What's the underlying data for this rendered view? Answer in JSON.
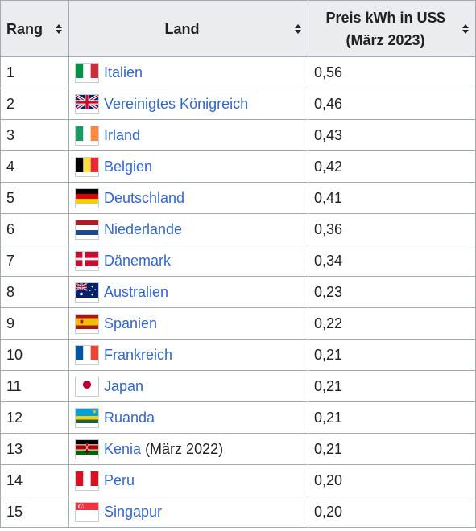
{
  "table": {
    "headers": {
      "rang": "Rang",
      "land": "Land",
      "preis_line1": "Preis kWh in US$",
      "preis_line2": "(März 2023)"
    },
    "rows": [
      {
        "rank": "1",
        "country": "Italien",
        "note": "",
        "price": "0,56",
        "flag_icon": "italy-flag-icon"
      },
      {
        "rank": "2",
        "country": "Vereinigtes Königreich",
        "note": "",
        "price": "0,46",
        "flag_icon": "uk-flag-icon"
      },
      {
        "rank": "3",
        "country": "Irland",
        "note": "",
        "price": "0,43",
        "flag_icon": "ireland-flag-icon"
      },
      {
        "rank": "4",
        "country": "Belgien",
        "note": "",
        "price": "0,42",
        "flag_icon": "belgium-flag-icon"
      },
      {
        "rank": "5",
        "country": "Deutschland",
        "note": "",
        "price": "0,41",
        "flag_icon": "germany-flag-icon"
      },
      {
        "rank": "6",
        "country": "Niederlande",
        "note": "",
        "price": "0,36",
        "flag_icon": "netherlands-flag-icon"
      },
      {
        "rank": "7",
        "country": "Dänemark",
        "note": "",
        "price": "0,34",
        "flag_icon": "denmark-flag-icon"
      },
      {
        "rank": "8",
        "country": "Australien",
        "note": "",
        "price": "0,23",
        "flag_icon": "australia-flag-icon"
      },
      {
        "rank": "9",
        "country": "Spanien",
        "note": "",
        "price": "0,22",
        "flag_icon": "spain-flag-icon"
      },
      {
        "rank": "10",
        "country": "Frankreich",
        "note": "",
        "price": "0,21",
        "flag_icon": "france-flag-icon"
      },
      {
        "rank": "11",
        "country": "Japan",
        "note": "",
        "price": "0,21",
        "flag_icon": "japan-flag-icon"
      },
      {
        "rank": "12",
        "country": "Ruanda",
        "note": "",
        "price": "0,21",
        "flag_icon": "rwanda-flag-icon"
      },
      {
        "rank": "13",
        "country": "Kenia",
        "note": "(März 2022)",
        "price": "0,21",
        "flag_icon": "kenya-flag-icon"
      },
      {
        "rank": "14",
        "country": "Peru",
        "note": "",
        "price": "0,20",
        "flag_icon": "peru-flag-icon"
      },
      {
        "rank": "15",
        "country": "Singapur",
        "note": "",
        "price": "0,20",
        "flag_icon": "singapore-flag-icon"
      }
    ]
  },
  "colors": {
    "link": "#3366cc",
    "header_bg": "#eaecf0",
    "border": "#a2a9b1",
    "text": "#202122"
  }
}
